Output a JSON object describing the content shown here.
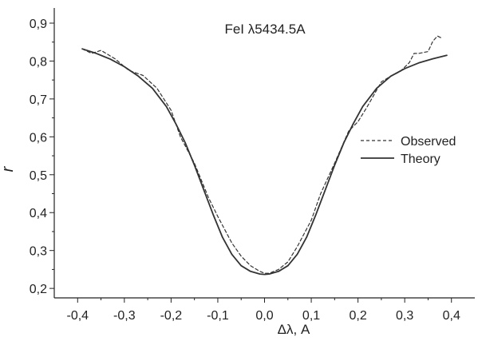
{
  "chart_data": {
    "type": "line",
    "title": "FeI λ5434.5A",
    "xlabel": "Δλ, A",
    "ylabel": "r",
    "xlim": [
      -0.45,
      0.45
    ],
    "ylim": [
      0.175,
      0.94
    ],
    "xticks": [
      -0.4,
      -0.3,
      -0.2,
      -0.1,
      0.0,
      0.1,
      0.2,
      0.3,
      0.4
    ],
    "xtick_labels": [
      "-0,4",
      "-0,3",
      "-0,2",
      "-0,1",
      "0,0",
      "0,1",
      "0,2",
      "0,3",
      "0,4"
    ],
    "yticks": [
      0.2,
      0.3,
      0.4,
      0.5,
      0.6,
      0.7,
      0.8,
      0.9
    ],
    "ytick_labels": [
      "0,2",
      "0,3",
      "0,4",
      "0,5",
      "0,6",
      "0,7",
      "0,8",
      "0,9"
    ],
    "grid": false,
    "legend_position": "right",
    "series": [
      {
        "name": "Observed",
        "style": "dashed",
        "color": "#333333",
        "x": [
          -0.39,
          -0.37,
          -0.35,
          -0.32,
          -0.29,
          -0.26,
          -0.23,
          -0.2,
          -0.18,
          -0.15,
          -0.12,
          -0.1,
          -0.07,
          -0.05,
          -0.03,
          -0.01,
          0.0,
          0.01,
          0.03,
          0.05,
          0.07,
          0.1,
          0.12,
          0.15,
          0.18,
          0.2,
          0.22,
          0.25,
          0.27,
          0.29,
          0.31,
          0.32,
          0.33,
          0.35,
          0.36,
          0.37,
          0.38
        ],
        "y": [
          0.832,
          0.82,
          0.828,
          0.806,
          0.775,
          0.762,
          0.728,
          0.67,
          0.6,
          0.53,
          0.44,
          0.39,
          0.32,
          0.285,
          0.26,
          0.245,
          0.24,
          0.24,
          0.25,
          0.27,
          0.31,
          0.38,
          0.45,
          0.53,
          0.615,
          0.64,
          0.68,
          0.745,
          0.76,
          0.772,
          0.796,
          0.82,
          0.82,
          0.825,
          0.852,
          0.866,
          0.86
        ]
      },
      {
        "name": "Theory",
        "style": "solid",
        "color": "#333333",
        "x": [
          -0.39,
          -0.36,
          -0.33,
          -0.3,
          -0.27,
          -0.24,
          -0.21,
          -0.19,
          -0.17,
          -0.15,
          -0.13,
          -0.11,
          -0.09,
          -0.07,
          -0.05,
          -0.03,
          -0.01,
          0.0,
          0.01,
          0.03,
          0.05,
          0.07,
          0.09,
          0.11,
          0.13,
          0.15,
          0.17,
          0.19,
          0.21,
          0.24,
          0.27,
          0.3,
          0.33,
          0.36,
          0.39
        ],
        "y": [
          0.832,
          0.82,
          0.805,
          0.785,
          0.76,
          0.728,
          0.68,
          0.635,
          0.585,
          0.525,
          0.46,
          0.395,
          0.335,
          0.29,
          0.26,
          0.245,
          0.238,
          0.237,
          0.238,
          0.245,
          0.26,
          0.29,
          0.335,
          0.395,
          0.46,
          0.525,
          0.585,
          0.635,
          0.68,
          0.728,
          0.76,
          0.78,
          0.795,
          0.806,
          0.815
        ]
      }
    ]
  }
}
